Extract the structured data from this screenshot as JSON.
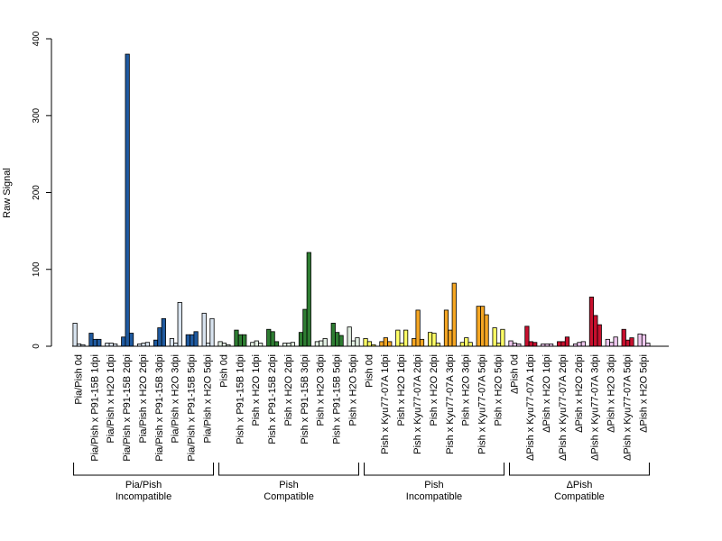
{
  "chart_data": {
    "type": "bar",
    "ylabel": "Raw Signal",
    "ylim": [
      0,
      400
    ],
    "yticks": [
      0,
      100,
      200,
      300,
      400
    ],
    "grid": false,
    "bars_per_category": 3,
    "categories": [
      "Pia/Pish 0d",
      "Pia/Pish x P91-15B 1dpi",
      "Pia/Pish x H2O 1dpi",
      "Pia/Pish x P91-15B 2dpi",
      "Pia/Pish x H2O 2dpi",
      "Pia/Pish x P91-15B 3dpi",
      "Pia/Pish x H2O 3dpi",
      "Pia/Pish x P91-15B 5dpi",
      "Pia/Pish x H2O 5dpi",
      "Pish 0d",
      "Pish x P91-15B 1dpi",
      "Pish x H2O 1dpi",
      "Pish x P91-15B 2dpi",
      "Pish x H2O 2dpi",
      "Pish x P91-15B 3dpi",
      "Pish x H2O 3dpi",
      "Pish x P91-15B 5dpi",
      "Pish x H2O 5dpi",
      "Pish 0d",
      "Pish x Kyu77-07A 1dpi",
      "Pish x H2O 1dpi",
      "Pish x Kyu77-07A 2dpi",
      "Pish x H2O 2dpi",
      "Pish x Kyu77-07A 3dpi",
      "Pish x H2O 3dpi",
      "Pish x Kyu77-07A 5dpi",
      "Pish x H2O 5dpi",
      "ΔPish 0d",
      "ΔPish x Kyu77-07A 1dpi",
      "ΔPish x H2O 1dpi",
      "ΔPish x Kyu77-07A 2dpi",
      "ΔPish x H2O 2dpi",
      "ΔPish x Kyu77-07A 3dpi",
      "ΔPish x H2O 3dpi",
      "ΔPish x Kyu77-07A 5dpi",
      "ΔPish x H2O 5dpi"
    ],
    "values": [
      [
        30,
        3,
        2
      ],
      [
        17,
        9,
        9
      ],
      [
        4,
        4,
        3
      ],
      [
        12,
        380,
        17
      ],
      [
        3,
        4,
        5
      ],
      [
        8,
        24,
        36
      ],
      [
        10,
        4,
        57
      ],
      [
        15,
        15,
        19
      ],
      [
        43,
        4,
        36
      ],
      [
        6,
        4,
        2
      ],
      [
        21,
        15,
        15
      ],
      [
        5,
        7,
        4
      ],
      [
        22,
        19,
        6
      ],
      [
        4,
        4,
        5
      ],
      [
        18,
        48,
        122
      ],
      [
        6,
        7,
        10
      ],
      [
        30,
        18,
        14
      ],
      [
        25,
        7,
        11
      ],
      [
        10,
        6,
        2
      ],
      [
        6,
        11,
        6
      ],
      [
        21,
        4,
        21
      ],
      [
        10,
        47,
        9
      ],
      [
        18,
        17,
        4
      ],
      [
        47,
        21,
        82
      ],
      [
        5,
        11,
        5
      ],
      [
        52,
        52,
        41
      ],
      [
        24,
        4,
        22
      ],
      [
        7,
        4,
        3
      ],
      [
        26,
        6,
        5
      ],
      [
        3,
        3,
        3
      ],
      [
        6,
        6,
        12
      ],
      [
        3,
        5,
        6
      ],
      [
        64,
        40,
        28
      ],
      [
        9,
        5,
        12
      ],
      [
        22,
        8,
        11
      ],
      [
        16,
        15,
        4
      ]
    ],
    "colors": [
      "#d9e4f0",
      "#1f5aa0",
      "#dde6f2",
      "#1f5aa0",
      "#d9e4f0",
      "#1f5aa0",
      "#d9e4f0",
      "#1f5aa0",
      "#d9e4f0",
      "#e2efe2",
      "#2e7d32",
      "#e2efe2",
      "#2e7d32",
      "#e2efe2",
      "#2e7d32",
      "#e2efe2",
      "#2e7d32",
      "#e2efe2",
      "#ffff66",
      "#f5a623",
      "#ffff66",
      "#f5a623",
      "#ffff66",
      "#f5a623",
      "#ffff66",
      "#f5a623",
      "#ffff66",
      "#f0c8f0",
      "#c8102e",
      "#f0c8f0",
      "#c8102e",
      "#f0c8f0",
      "#c8102e",
      "#f0c8f0",
      "#c8102e",
      "#f0c8f0"
    ],
    "groups": [
      {
        "line1": "Pia/Pish",
        "line2": "Incompatible",
        "start": 0,
        "end": 8
      },
      {
        "line1": "Pish",
        "line2": "Compatible",
        "start": 9,
        "end": 17
      },
      {
        "line1": "Pish",
        "line2": "Incompatible",
        "start": 18,
        "end": 26
      },
      {
        "line1": "ΔPish",
        "line2": "Compatible",
        "start": 27,
        "end": 35
      }
    ]
  }
}
